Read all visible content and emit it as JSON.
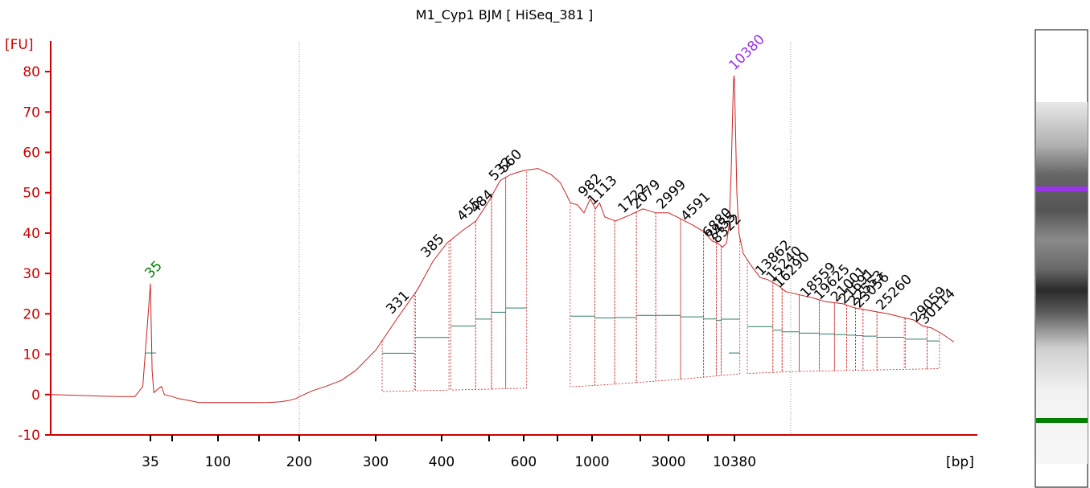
{
  "chart_data": {
    "type": "line",
    "title": "M1_Cyp1 BJM  [ HiSeq_381 ]",
    "ylabel": "[FU]",
    "xlabel": "[bp]",
    "ylim": [
      -10,
      85
    ],
    "y_ticks": [
      -10,
      0,
      10,
      20,
      30,
      40,
      50,
      60,
      70,
      80
    ],
    "x_tick_labels": [
      "35",
      "100",
      "200",
      "300",
      "400",
      "600",
      "1000",
      "3000",
      "10380"
    ],
    "colors": {
      "trace": "#cc2222",
      "axis": "#cc0000",
      "lower_marker": "#008000",
      "upper_marker": "#9933ee",
      "baseline": "#2e7d6b"
    },
    "markers": [
      {
        "label": "35",
        "color": "#008000",
        "x_bp": 35,
        "fu": 27.5
      },
      {
        "label": "10380",
        "color": "#9933ee",
        "x_bp": 10380,
        "fu": 79
      }
    ],
    "series": [
      {
        "x": [
          24,
          31,
          33,
          34,
          35,
          36,
          37,
          40,
          42,
          44,
          50,
          55,
          65,
          75,
          85,
          100,
          120,
          140,
          160,
          175,
          185,
          195,
          205,
          215,
          230,
          250,
          270,
          300,
          330,
          360,
          385,
          410,
          440,
          470,
          500,
          530,
          560,
          600,
          640,
          680,
          720,
          760,
          800,
          860,
          920,
          982,
          1050,
          1113,
          1200,
          1400,
          1722,
          2079,
          2500,
          2999,
          3500,
          4000,
          4591,
          5500,
          6600,
          7400,
          8100,
          8800,
          9300,
          9700,
          10000,
          10150,
          10280,
          10380,
          10480,
          10600,
          10800,
          11200,
          12000,
          13000,
          13862,
          15240,
          16290,
          18559,
          19600,
          21000,
          22000,
          23000,
          25260,
          27000,
          28000,
          29059,
          30114,
          31500,
          33000
        ],
        "y": [
          0,
          -0.5,
          -0.5,
          2,
          27.5,
          6,
          0.5,
          1.5,
          2,
          0,
          -0.5,
          -1,
          -1.5,
          -2,
          -2,
          -2,
          -2,
          -2,
          -2,
          -1.8,
          -1.5,
          -1,
          0,
          1,
          2,
          3.5,
          6,
          11,
          19,
          26,
          33,
          37.5,
          40.5,
          43,
          48,
          53,
          54.5,
          55.5,
          56,
          54.5,
          52.5,
          50,
          47.5,
          47,
          45,
          48.5,
          46,
          47.5,
          44,
          43,
          44.5,
          46,
          45,
          45,
          44,
          43,
          42,
          40.5,
          38,
          37.5,
          36.5,
          37.5,
          42,
          55,
          70,
          77,
          79,
          78,
          65,
          50,
          40,
          35,
          32,
          29,
          28.5,
          27,
          25.5,
          24,
          23,
          22.5,
          21.5,
          21,
          20,
          19,
          18.5,
          17,
          16.5,
          15,
          13
        ]
      }
    ],
    "peaks": [
      {
        "label": "331",
        "x_bp": 331,
        "y": 19
      },
      {
        "label": "385",
        "x_bp": 385,
        "y": 33
      },
      {
        "label": "455",
        "x_bp": 455,
        "y": 42
      },
      {
        "label": "484",
        "x_bp": 484,
        "y": 44
      },
      {
        "label": "532",
        "x_bp": 532,
        "y": 52
      },
      {
        "label": "560",
        "x_bp": 560,
        "y": 54
      },
      {
        "label": "982",
        "x_bp": 982,
        "y": 48
      },
      {
        "label": "1113",
        "x_bp": 1113,
        "y": 46
      },
      {
        "label": "1722",
        "x_bp": 1722,
        "y": 44
      },
      {
        "label": "2079",
        "x_bp": 2079,
        "y": 45
      },
      {
        "label": "2999",
        "x_bp": 2999,
        "y": 45
      },
      {
        "label": "4591",
        "x_bp": 4591,
        "y": 42
      },
      {
        "label": "6880",
        "x_bp": 6880,
        "y": 38
      },
      {
        "label": "7455",
        "x_bp": 7455,
        "y": 37
      },
      {
        "label": "8322",
        "x_bp": 8322,
        "y": 36.5
      },
      {
        "label": "13862",
        "x_bp": 13862,
        "y": 28.5
      },
      {
        "label": "15240",
        "x_bp": 15240,
        "y": 27
      },
      {
        "label": "16290",
        "x_bp": 16290,
        "y": 25.5
      },
      {
        "label": "18559",
        "x_bp": 18559,
        "y": 23
      },
      {
        "label": "19625",
        "x_bp": 19625,
        "y": 22.5
      },
      {
        "label": "21001",
        "x_bp": 21001,
        "y": 22
      },
      {
        "label": "21691",
        "x_bp": 21691,
        "y": 21.5
      },
      {
        "label": "22553",
        "x_bp": 22553,
        "y": 21
      },
      {
        "label": "23056",
        "x_bp": 23056,
        "y": 20.5
      },
      {
        "label": "25260",
        "x_bp": 25260,
        "y": 20
      },
      {
        "label": "29059",
        "x_bp": 29059,
        "y": 17
      },
      {
        "label": "30114",
        "x_bp": 30114,
        "y": 16.5
      }
    ],
    "gel": {
      "bands": [
        {
          "position": 0.24,
          "color": "#9933ee"
        },
        {
          "position": 0.88,
          "color": "#008000"
        }
      ]
    }
  }
}
